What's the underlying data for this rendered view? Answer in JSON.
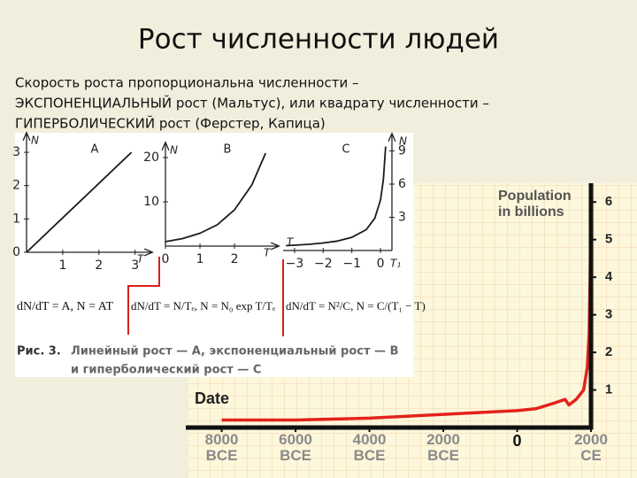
{
  "title": "Рост численности людей",
  "text": [
    "Скорость роста пропорциональна численности –",
    "ЭКСПОНЕНЦИАЛЬНЫЙ рост (Мальтус), или квадрату численности –",
    "ГИПЕРБОЛИЧЕСКИЙ рост (Ферстер, Капица)"
  ],
  "formulas": [
    "dN/dT = A, N = AT",
    "dN/dT = N/Tₑ, N = N₀ exp T/Tₑ",
    "dN/dT = N²/C, N = C/(T₁ − T)"
  ],
  "caption": {
    "label": "Рис. 3.",
    "lines": [
      "Линейный рост — A, экспоненциальный рост — B",
      "и гиперболический рост — C"
    ]
  },
  "chart_data": [
    {
      "type": "line",
      "label": "A",
      "xlabel": "T",
      "ylabel": "N",
      "x": [
        0,
        2.9
      ],
      "values": [
        0,
        3
      ],
      "color": "#1a1a1a",
      "xlim": [
        0,
        3.3
      ],
      "ylim": [
        0,
        3.4
      ],
      "xticks": [
        1,
        2,
        3
      ],
      "yticks": [
        0,
        1,
        2,
        3
      ]
    },
    {
      "type": "line",
      "label": "B",
      "xlabel": "T",
      "ylabel": "N",
      "x": [
        0,
        0.5,
        1,
        1.5,
        2,
        2.5,
        2.9
      ],
      "values": [
        1,
        1.7,
        2.9,
        4.8,
        8.2,
        13.8,
        21
      ],
      "color": "#1a1a1a",
      "xlim": [
        0,
        3.1
      ],
      "ylim": [
        0,
        22
      ],
      "xticks": [
        0,
        1,
        2
      ],
      "yticks": [
        10,
        20
      ]
    },
    {
      "type": "line",
      "label": "C",
      "xlabel": "T",
      "xlabel_end": "T₁",
      "ylabel": "N",
      "y_axis_side": "right",
      "x": [
        -3.3,
        -3,
        -2.5,
        -2,
        -1.5,
        -1,
        -0.5,
        -0.2,
        0,
        0.1,
        0.18
      ],
      "values": [
        0.44,
        0.48,
        0.56,
        0.68,
        0.86,
        1.19,
        1.88,
        2.91,
        4.57,
        6.4,
        9.4
      ],
      "color": "#1a1a1a",
      "xlim": [
        -3.4,
        0.4
      ],
      "ylim": [
        0,
        10
      ],
      "xticks": [
        {
          "value": -3,
          "label": "−3"
        },
        {
          "value": -2,
          "label": "−2"
        },
        {
          "value": -1,
          "label": "−1"
        },
        0
      ],
      "yticks": [
        3,
        6,
        9
      ]
    },
    {
      "type": "line",
      "title": "Population in billions",
      "xlabel": "Date",
      "x": [
        -8000,
        -6000,
        -4000,
        -3000,
        -2000,
        -1000,
        0,
        500,
        1000,
        1300,
        1400,
        1600,
        1800,
        1900,
        1950,
        1975,
        2000
      ],
      "values": [
        0.2,
        0.2,
        0.25,
        0.3,
        0.35,
        0.4,
        0.45,
        0.5,
        0.65,
        0.75,
        0.6,
        0.75,
        1.0,
        1.6,
        2.5,
        4,
        6.3
      ],
      "color": "#e3231b",
      "xlim": [
        -8900,
        2000
      ],
      "ylim": [
        0,
        6.5
      ],
      "xticks": [
        {
          "value": -8000,
          "label": "8000\nBCE"
        },
        {
          "value": -6000,
          "label": "6000\nBCE"
        },
        {
          "value": -4000,
          "label": "4000\nBCE"
        },
        {
          "value": -2000,
          "label": "2000\nBCE"
        },
        0,
        {
          "value": 2000,
          "label": "2000\nCE"
        }
      ],
      "yticks": [
        1,
        2,
        3,
        4,
        5,
        6
      ]
    }
  ]
}
